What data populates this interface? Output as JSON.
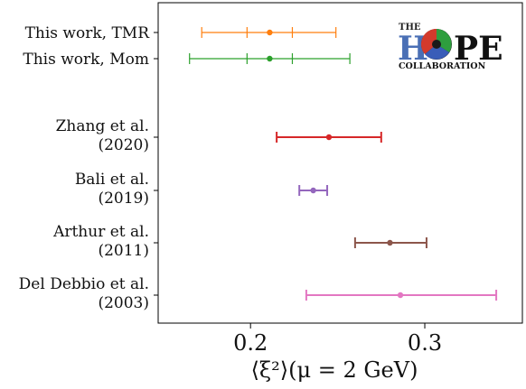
{
  "chart_data": {
    "type": "forest",
    "xlabel": "⟨ξ²⟩(μ = 2 GeV)",
    "xticks": [
      0.2,
      0.3
    ],
    "xtick_labels": [
      "0.2",
      "0.3"
    ],
    "xlim": [
      0.147,
      0.356
    ],
    "entries": [
      {
        "label": "This work, TMR",
        "value": 0.211,
        "inner": [
          0.198,
          0.224
        ],
        "outer": [
          0.172,
          0.249
        ],
        "color": "#ff7f0e"
      },
      {
        "label": "This work, Mom",
        "value": 0.211,
        "inner": [
          0.198,
          0.224
        ],
        "outer": [
          0.165,
          0.257
        ],
        "color": "#2ca02c"
      },
      {
        "label": "Zhang et al.\n(2020)",
        "value": 0.245,
        "low": 0.215,
        "high": 0.275,
        "color": "#d62728"
      },
      {
        "label": "Bali et al.\n(2019)",
        "value": 0.236,
        "low": 0.228,
        "high": 0.244,
        "color": "#9467bd"
      },
      {
        "label": "Arthur et al.\n(2011)",
        "value": 0.28,
        "low": 0.26,
        "high": 0.301,
        "color": "#8c564b"
      },
      {
        "label": "Del Debbio et al.\n(2003)",
        "value": 0.286,
        "low": 0.232,
        "high": 0.341,
        "color": "#e377c2"
      }
    ]
  },
  "logo": {
    "top_text": "THE",
    "main_text": "OPE",
    "h_letter": "H",
    "bottom_text": "COLLABORATION"
  }
}
